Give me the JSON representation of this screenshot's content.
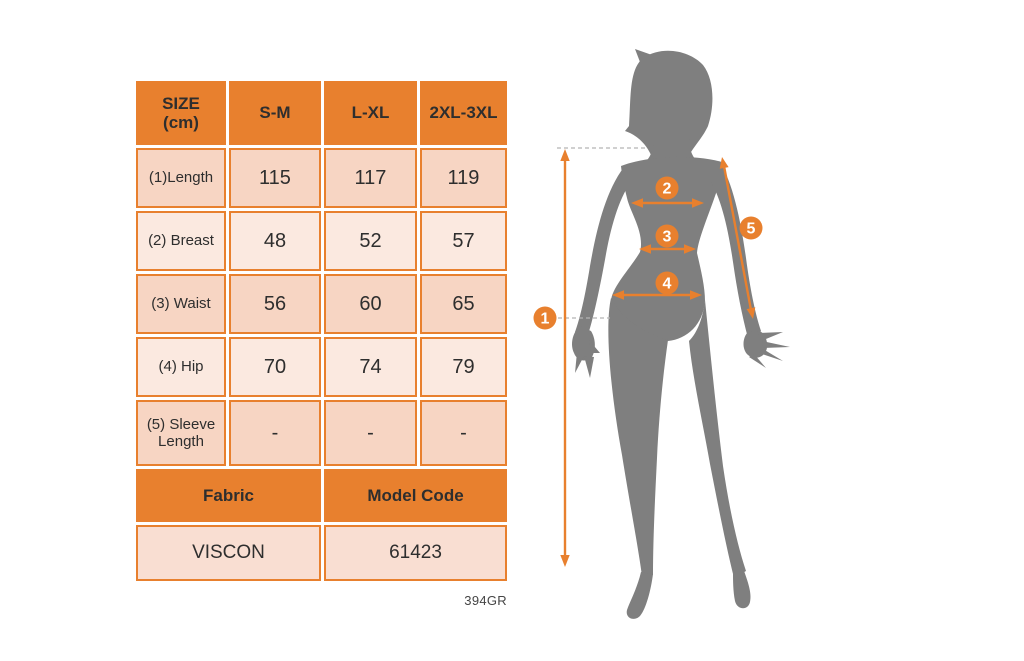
{
  "page": {
    "note_code": "394GR"
  },
  "table": {
    "size_header": {
      "line1": "SIZE",
      "line2": "(cm)"
    },
    "columns": [
      "S-M",
      "L-XL",
      "2XL-3XL"
    ],
    "rows": [
      {
        "label": "(1)Length",
        "values": [
          "115",
          "117",
          "119"
        ]
      },
      {
        "label": "(2) Breast",
        "values": [
          "48",
          "52",
          "57"
        ]
      },
      {
        "label": "(3) Waist",
        "values": [
          "56",
          "60",
          "65"
        ]
      },
      {
        "label": "(4) Hip",
        "values": [
          "70",
          "74",
          "79"
        ]
      },
      {
        "label": "(5) Sleeve Length",
        "values": [
          "-",
          "-",
          "-"
        ]
      }
    ],
    "fabric_header": "Fabric",
    "model_code_header": "Model Code",
    "fabric_value": "VISCON",
    "model_code_value": "61423"
  },
  "figure": {
    "badges": [
      "1",
      "2",
      "3",
      "4",
      "5"
    ]
  },
  "colors": {
    "orange": "#e8802e",
    "band_dark": "#f7d5c3",
    "band_light": "#fbe9e0",
    "footer_band": "#f9ded2",
    "silhouette_gray": "#7f7f7f",
    "text_dark": "#2e2e2e"
  }
}
